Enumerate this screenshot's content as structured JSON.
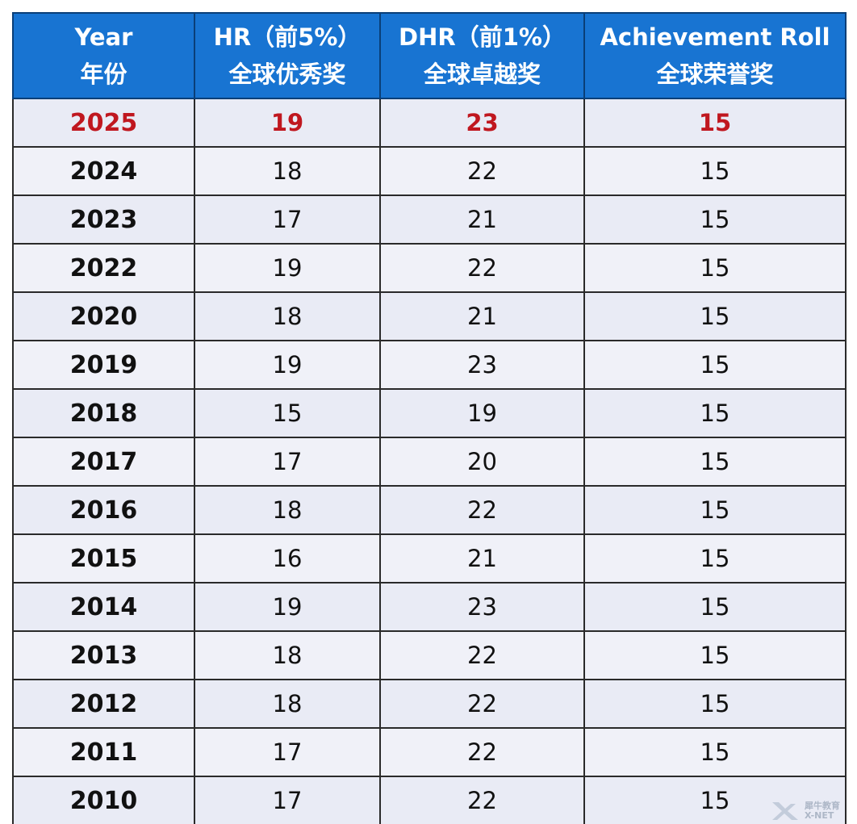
{
  "table": {
    "headers": [
      {
        "line1": "Year",
        "line2": "年份"
      },
      {
        "line1": "HR（前5%）",
        "line2": "全球优秀奖"
      },
      {
        "line1": "DHR（前1%）",
        "line2": "全球卓越奖"
      },
      {
        "line1": "Achievement Roll",
        "line2": "全球荣誉奖"
      }
    ],
    "rows": [
      {
        "year": "2025",
        "hr": "19",
        "dhr": "23",
        "ach": "15"
      },
      {
        "year": "2024",
        "hr": "18",
        "dhr": "22",
        "ach": "15"
      },
      {
        "year": "2023",
        "hr": "17",
        "dhr": "21",
        "ach": "15"
      },
      {
        "year": "2022",
        "hr": "19",
        "dhr": "22",
        "ach": "15"
      },
      {
        "year": "2020",
        "hr": "18",
        "dhr": "21",
        "ach": "15"
      },
      {
        "year": "2019",
        "hr": "19",
        "dhr": "23",
        "ach": "15"
      },
      {
        "year": "2018",
        "hr": "15",
        "dhr": "19",
        "ach": "15"
      },
      {
        "year": "2017",
        "hr": "17",
        "dhr": "20",
        "ach": "15"
      },
      {
        "year": "2016",
        "hr": "18",
        "dhr": "22",
        "ach": "15"
      },
      {
        "year": "2015",
        "hr": "16",
        "dhr": "21",
        "ach": "15"
      },
      {
        "year": "2014",
        "hr": "19",
        "dhr": "23",
        "ach": "15"
      },
      {
        "year": "2013",
        "hr": "18",
        "dhr": "22",
        "ach": "15"
      },
      {
        "year": "2012",
        "hr": "18",
        "dhr": "22",
        "ach": "15"
      },
      {
        "year": "2011",
        "hr": "17",
        "dhr": "22",
        "ach": "15"
      },
      {
        "year": "2010",
        "hr": "17",
        "dhr": "22",
        "ach": "15"
      }
    ],
    "highlight_row_color": "#c0171f",
    "header_bg": "#1874d2"
  },
  "watermark": {
    "icon": "x-logo-icon",
    "line1": "犀牛教育",
    "line2": "X-NET"
  }
}
